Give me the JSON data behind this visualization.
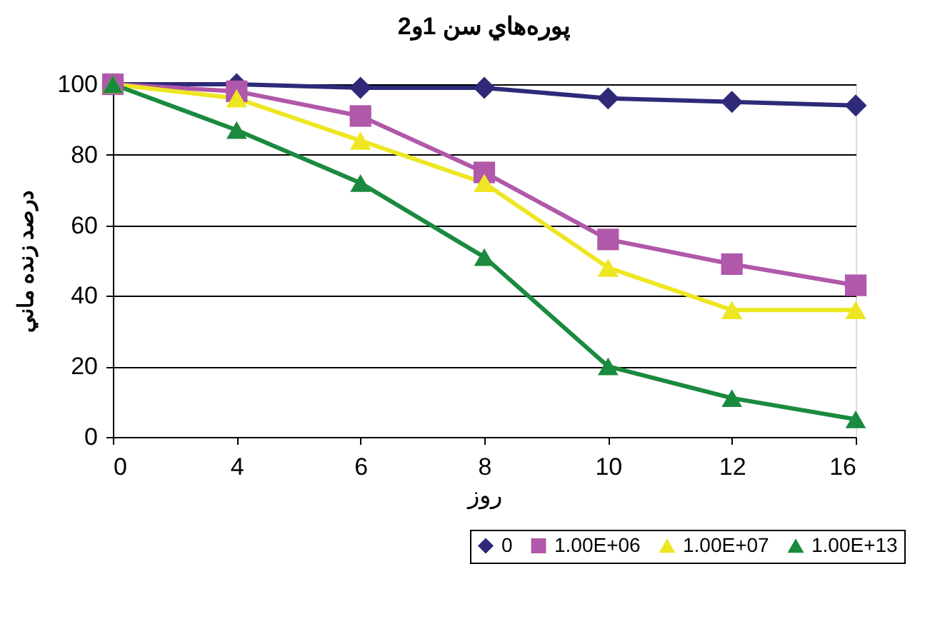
{
  "chart_data": {
    "type": "line",
    "title": "پوره‌هاي سن 1و2",
    "xlabel": "روز",
    "ylabel": "درصد زنده ماني",
    "categories": [
      "0",
      "4",
      "6",
      "8",
      "10",
      "12",
      "16"
    ],
    "series": [
      {
        "name": "0",
        "color": "#2e2a78",
        "marker": "diamond",
        "values": [
          100,
          100,
          99,
          99,
          96,
          95,
          94
        ]
      },
      {
        "name": "1.00E+06",
        "color": "#b058aa",
        "marker": "square",
        "values": [
          100,
          98,
          91,
          75,
          56,
          49,
          43
        ]
      },
      {
        "name": "1.00E+07",
        "color": "#eee622",
        "marker": "triangle",
        "values": [
          100,
          96,
          84,
          72,
          48,
          36,
          36
        ]
      },
      {
        "name": "1.00E+13",
        "color": "#1a8a3e",
        "marker": "triangle",
        "values": [
          100,
          87,
          72,
          51,
          20,
          11,
          5
        ]
      }
    ],
    "ylim": [
      0,
      100
    ],
    "yticks": [
      0,
      20,
      40,
      60,
      80,
      100
    ],
    "grid": "y",
    "legend": "bottom right",
    "line_style": "solid"
  }
}
